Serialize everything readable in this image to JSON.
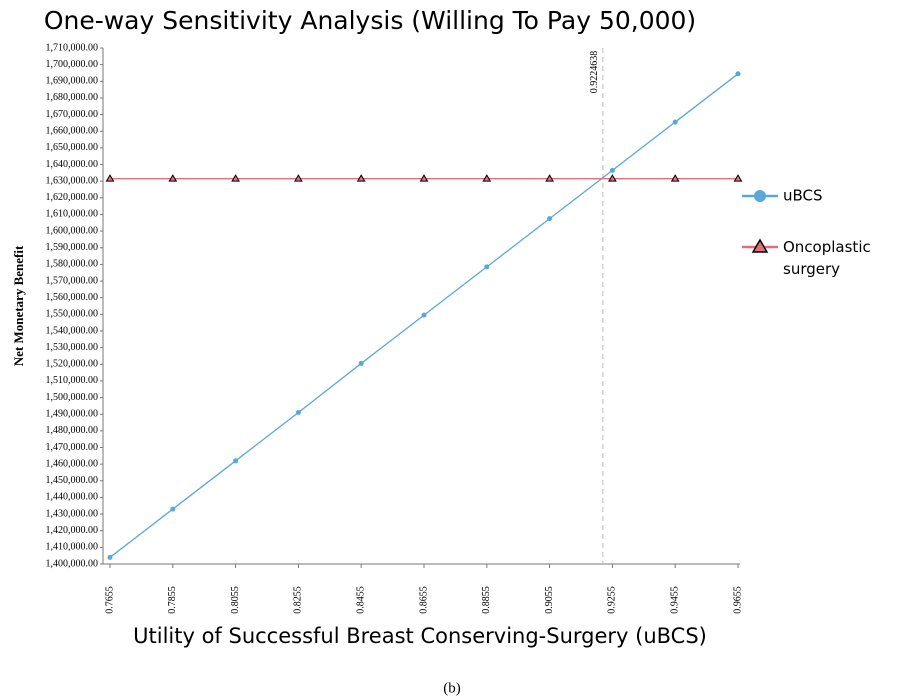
{
  "chart_data": {
    "type": "line",
    "title": "One-way Sensitivity Analysis (Willing To Pay 50,000)",
    "x_label": "Utility of Successful Breast Conserving-Surgery (uBCS)",
    "y_label": "Net Monetary Benefit",
    "caption": "(b)",
    "x": [
      0.7655,
      0.7855,
      0.8055,
      0.8255,
      0.8455,
      0.8655,
      0.8855,
      0.9055,
      0.9255,
      0.9455,
      0.9655
    ],
    "series": [
      {
        "name": "uBCS",
        "color": "#5aa8d8",
        "marker": "circle",
        "values": [
          1404000,
          1433000,
          1462000,
          1491000,
          1520500,
          1549500,
          1578500,
          1607500,
          1636500,
          1665500,
          1694500
        ]
      },
      {
        "name": "Oncoplastic surgery",
        "color": "#e0707a",
        "marker": "triangle",
        "values": [
          1631500,
          1631500,
          1631500,
          1631500,
          1631500,
          1631500,
          1631500,
          1631500,
          1631500,
          1631500,
          1631500
        ]
      }
    ],
    "vline": 0.9224638,
    "xlim": [
      0.7655,
      0.9655
    ],
    "xticks": [
      0.7655,
      0.7855,
      0.8055,
      0.8255,
      0.8455,
      0.8655,
      0.8855,
      0.9055,
      0.9255,
      0.9455,
      0.9655
    ],
    "ylim": [
      1400000,
      1710000
    ],
    "yticks": [
      {
        "value": 1400000,
        "label": "1,400,000.00"
      },
      {
        "value": 1410000,
        "label": "1,410,000.00"
      },
      {
        "value": 1420000,
        "label": "1,420,000.00"
      },
      {
        "value": 1430000,
        "label": "1,430,000.00"
      },
      {
        "value": 1440000,
        "label": "1,440,000.00"
      },
      {
        "value": 1450000,
        "label": "1,450,000.00"
      },
      {
        "value": 1460000,
        "label": "1,460,000.00"
      },
      {
        "value": 1470000,
        "label": "1,470,000.00"
      },
      {
        "value": 1480000,
        "label": "1,480,000.00"
      },
      {
        "value": 1490000,
        "label": "1,490,000.00"
      },
      {
        "value": 1500000,
        "label": "1,500,000.00"
      },
      {
        "value": 1510000,
        "label": "1,510,000.00"
      },
      {
        "value": 1520000,
        "label": "1,520,000.00"
      },
      {
        "value": 1530000,
        "label": "1,530,000.00"
      },
      {
        "value": 1540000,
        "label": "1,540,000.00"
      },
      {
        "value": 1550000,
        "label": "1,550,000.00"
      },
      {
        "value": 1560000,
        "label": "1,560,000.00"
      },
      {
        "value": 1570000,
        "label": "1,570,000.00"
      },
      {
        "value": 1580000,
        "label": "1,580,000.00"
      },
      {
        "value": 1590000,
        "label": "1,590,000.00"
      },
      {
        "value": 1600000,
        "label": "1,600,000.00"
      },
      {
        "value": 1610000,
        "label": "1,610,000.00"
      },
      {
        "value": 1620000,
        "label": "1,620,000.00"
      },
      {
        "value": 1630000,
        "label": "1,630,000.00"
      },
      {
        "value": 1640000,
        "label": "1,640,000.00"
      },
      {
        "value": 1650000,
        "label": "1,650,000.00"
      },
      {
        "value": 1660000,
        "label": "1,660,000.00"
      },
      {
        "value": 1670000,
        "label": "1,670,000.00"
      },
      {
        "value": 1680000,
        "label": "1,680,000.00"
      },
      {
        "value": 1690000,
        "label": "1,690,000.00"
      },
      {
        "value": 1700000,
        "label": "1,700,000.00"
      },
      {
        "value": 1710000,
        "label": "1,710,000.00"
      }
    ],
    "legend": "right"
  }
}
